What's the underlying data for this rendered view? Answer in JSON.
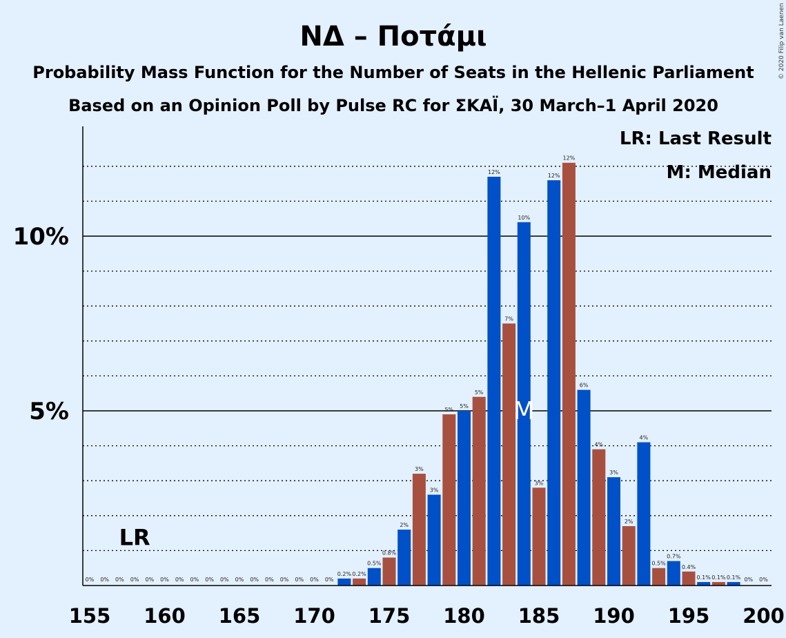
{
  "title": "ΝΔ – Ποτάμι",
  "subtitle_1": "Probability Mass Function for the Number of Seats in the Hellenic Parliament",
  "subtitle_2": "Based on an Opinion Poll by Pulse RC for ΣΚΑΪ, 30 March–1 April 2020",
  "copyright": "© 2020 Filip van Laenen",
  "legend": {
    "last_result": "LR: Last Result",
    "median": "M: Median"
  },
  "markers": {
    "last_result_label": "LR",
    "last_result_seats": 158,
    "median_label": "M",
    "median_seats": 184
  },
  "colors": {
    "background": "#e3f0fd",
    "blue_bar": "#0050c8",
    "red_bar": "#a85040"
  },
  "chart_data": {
    "type": "bar",
    "x": [
      155,
      156,
      157,
      158,
      159,
      160,
      161,
      162,
      163,
      164,
      165,
      166,
      167,
      168,
      169,
      170,
      171,
      172,
      173,
      174,
      175,
      176,
      177,
      178,
      179,
      180,
      181,
      182,
      183,
      184,
      185,
      186,
      187,
      188,
      189,
      190,
      191,
      192,
      193,
      194,
      195,
      196,
      197,
      198,
      199,
      200
    ],
    "values": [
      0,
      0,
      0,
      0,
      0,
      0,
      0,
      0,
      0,
      0,
      0,
      0,
      0,
      0,
      0,
      0,
      0,
      0.2,
      0.2,
      0.5,
      0.8,
      1.6,
      3.2,
      2.6,
      4.9,
      5.0,
      5.4,
      11.7,
      7.5,
      10.4,
      2.8,
      11.6,
      12.1,
      5.6,
      3.9,
      3.1,
      1.7,
      4.1,
      0.5,
      0.7,
      0.4,
      0.1,
      0.1,
      0.1,
      0,
      0
    ],
    "labels": [
      "0%",
      "0%",
      "0%",
      "0%",
      "0%",
      "0%",
      "0%",
      "0%",
      "0%",
      "0%",
      "0%",
      "0%",
      "0%",
      "0%",
      "0%",
      "0%",
      "0%",
      "0.2%",
      "0.2%",
      "0.5%",
      "0.8%",
      "2%",
      "3%",
      "3%",
      "5%",
      "5%",
      "5%",
      "12%",
      "7%",
      "10%",
      "3%",
      "12%",
      "12%",
      "6%",
      "4%",
      "3%",
      "2%",
      "4%",
      "0.5%",
      "0.7%",
      "0.4%",
      "0.1%",
      "0.1%",
      "0.1%",
      "0%",
      "0%"
    ],
    "xticks": [
      155,
      160,
      165,
      170,
      175,
      180,
      185,
      190,
      195,
      200
    ],
    "yticks": [
      {
        "value": 5,
        "label": "5%"
      },
      {
        "value": 10,
        "label": "10%"
      }
    ],
    "ylim": [
      0,
      13
    ],
    "xlabel": "",
    "ylabel": ""
  }
}
